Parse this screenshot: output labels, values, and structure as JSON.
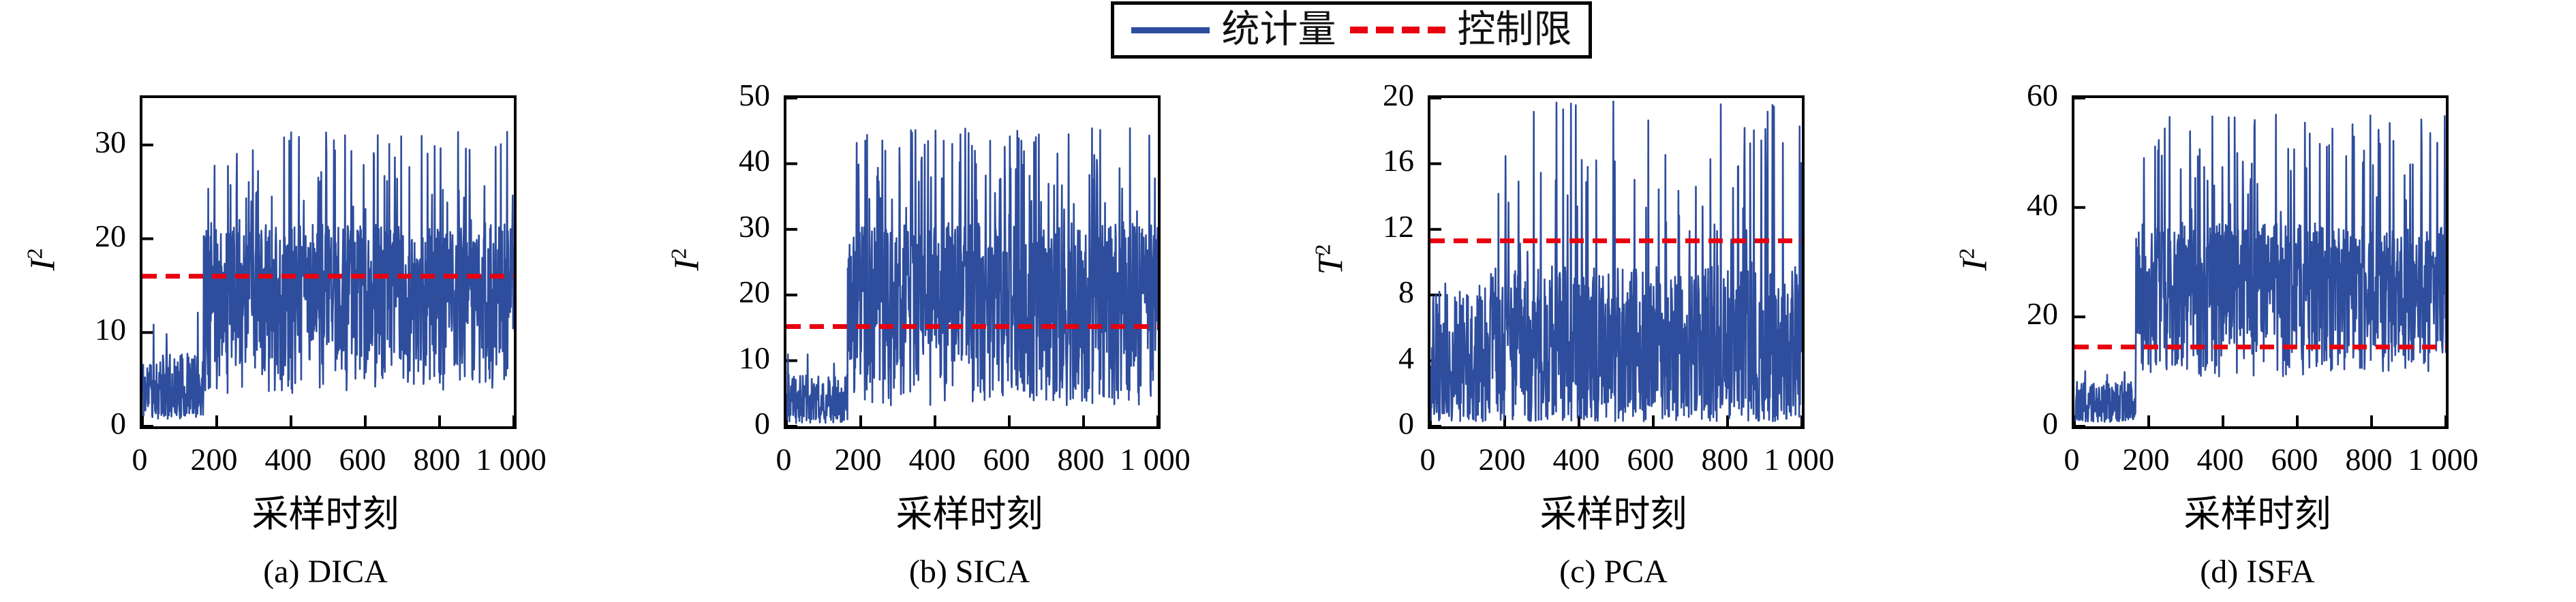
{
  "colors": {
    "series": "#2e4d9d",
    "control_limit": "#e8000f",
    "axis": "#000000",
    "background": "#ffffff"
  },
  "legend": {
    "position": "top-center",
    "items": [
      {
        "label": "统计量",
        "line_style": "solid",
        "color": "#2e4d9d"
      },
      {
        "label": "控制限",
        "line_style": "dashed",
        "color": "#e8000f"
      }
    ]
  },
  "chart_data": [
    {
      "type": "line",
      "method": "DICA",
      "caption": "(a) DICA",
      "xlabel": "采样时刻",
      "ylabel": {
        "base": "I",
        "sup": "2"
      },
      "xlim": [
        0,
        1000
      ],
      "ylim": [
        0,
        35
      ],
      "x_tick_values": [
        0,
        200,
        400,
        600,
        800,
        1000
      ],
      "x_tick_labels": [
        "0",
        "200",
        "400",
        "600",
        "800",
        "1 000"
      ],
      "y_ticks": [
        0,
        10,
        20,
        30
      ],
      "control_limit": 16.0,
      "grid": false,
      "series": {
        "name": "统计量",
        "n_points": 1000,
        "seed": 11,
        "fault_onset_sample": 165,
        "profile": [
          {
            "from": 0,
            "to": 165,
            "floor": 0.8,
            "spread": 7,
            "shape": 1.2,
            "spike_prob": 0.05,
            "spike_max": 12.5
          },
          {
            "from": 165,
            "to": 1000,
            "floor": 3.5,
            "spread": 18,
            "shape": 0.8,
            "spike_prob": 0.1,
            "spike_max": 31.5
          }
        ]
      }
    },
    {
      "type": "line",
      "method": "SICA",
      "caption": "(b) SICA",
      "xlabel": "采样时刻",
      "ylabel": {
        "base": "I",
        "sup": "2"
      },
      "xlim": [
        0,
        1000
      ],
      "ylim": [
        0,
        50
      ],
      "x_tick_values": [
        0,
        200,
        400,
        600,
        800,
        1000
      ],
      "x_tick_labels": [
        "0",
        "200",
        "400",
        "600",
        "800",
        "1 000"
      ],
      "y_ticks": [
        0,
        10,
        20,
        30,
        40,
        50
      ],
      "control_limit": 15.2,
      "grid": false,
      "series": {
        "name": "统计量",
        "n_points": 1000,
        "seed": 23,
        "fault_onset_sample": 165,
        "profile": [
          {
            "from": 0,
            "to": 165,
            "floor": 0.5,
            "spread": 7.5,
            "shape": 1.2,
            "spike_prob": 0.05,
            "spike_max": 12
          },
          {
            "from": 165,
            "to": 1000,
            "floor": 3.0,
            "spread": 28,
            "shape": 0.8,
            "spike_prob": 0.1,
            "spike_max": 45.5
          }
        ]
      }
    },
    {
      "type": "line",
      "method": "PCA",
      "caption": "(c) PCA",
      "xlabel": "采样时刻",
      "ylabel": {
        "base": "T",
        "sup": "2"
      },
      "xlim": [
        0,
        1000
      ],
      "ylim": [
        0,
        20
      ],
      "x_tick_values": [
        0,
        200,
        400,
        600,
        800,
        1000
      ],
      "x_tick_labels": [
        "0",
        "200",
        "400",
        "600",
        "800",
        "1 000"
      ],
      "y_ticks": [
        0,
        4,
        8,
        12,
        16,
        20
      ],
      "control_limit": 11.3,
      "grid": false,
      "series": {
        "name": "统计量",
        "n_points": 1000,
        "seed": 37,
        "fault_onset_sample": 165,
        "profile": [
          {
            "from": 0,
            "to": 160,
            "floor": 0.3,
            "spread": 8,
            "shape": 1.3,
            "spike_prob": 0.05,
            "spike_max": 9
          },
          {
            "from": 160,
            "to": 1000,
            "floor": 0.3,
            "spread": 9.5,
            "shape": 1.2,
            "spike_prob": 0.08,
            "spike_max": 19.8
          }
        ]
      }
    },
    {
      "type": "line",
      "method": "ISFA",
      "caption": "(d) ISFA",
      "xlabel": "采样时刻",
      "ylabel": {
        "base": "I",
        "sup": "2"
      },
      "xlim": [
        0,
        1000
      ],
      "ylim": [
        0,
        60
      ],
      "x_tick_values": [
        0,
        200,
        400,
        600,
        800,
        1000
      ],
      "x_tick_labels": [
        "0",
        "200",
        "400",
        "600",
        "800",
        "1 000"
      ],
      "y_ticks": [
        0,
        20,
        40,
        60
      ],
      "control_limit": 14.5,
      "grid": false,
      "series": {
        "name": "统计量",
        "n_points": 1000,
        "seed": 53,
        "fault_onset_sample": 165,
        "profile": [
          {
            "from": 0,
            "to": 165,
            "floor": 0.8,
            "spread": 7.5,
            "shape": 1.2,
            "spike_prob": 0.05,
            "spike_max": 12
          },
          {
            "from": 165,
            "to": 1000,
            "floor": 9.0,
            "spread": 28,
            "shape": 0.8,
            "spike_prob": 0.1,
            "spike_max": 57
          }
        ]
      }
    }
  ]
}
